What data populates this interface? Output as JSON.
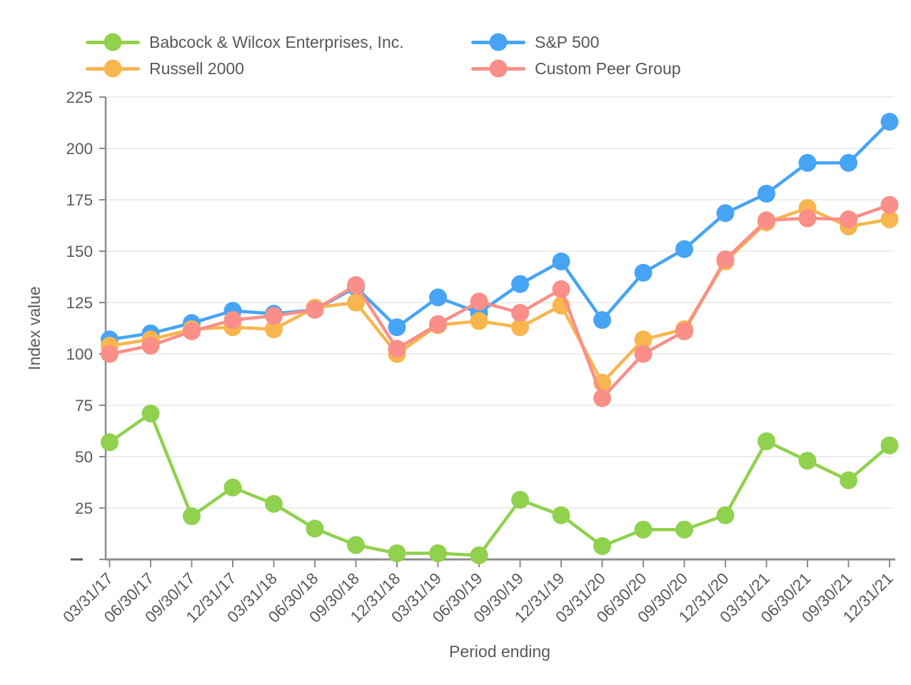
{
  "chart_data": {
    "type": "line",
    "title": "",
    "xlabel": "Period ending",
    "ylabel": "Index value",
    "ylim": [
      0,
      225
    ],
    "ytick_step": 25,
    "grid": true,
    "legend_position": "top",
    "categories": [
      "03/31/17",
      "06/30/17",
      "09/30/17",
      "12/31/17",
      "03/31/18",
      "06/30/18",
      "09/30/18",
      "12/31/18",
      "03/31/19",
      "06/30/19",
      "09/30/19",
      "12/31/19",
      "03/31/20",
      "06/30/20",
      "09/30/20",
      "12/31/20",
      "03/31/21",
      "06/30/21",
      "09/30/21",
      "12/31/21"
    ],
    "series": [
      {
        "name": "Babcock & Wilcox Enterprises, Inc.",
        "color": "#90d14d",
        "values": [
          57,
          71,
          21,
          35,
          27,
          15,
          7,
          3,
          3,
          2,
          29,
          21.5,
          6.5,
          14.5,
          14.5,
          21.5,
          57.5,
          48,
          38.5,
          55.5
        ]
      },
      {
        "name": "S&P 500",
        "color": "#47a4f5",
        "values": [
          107,
          110,
          115,
          121,
          119.5,
          121.5,
          132.5,
          113,
          127.5,
          120,
          134,
          145,
          116.5,
          139.5,
          151,
          168.5,
          178,
          193,
          193,
          213
        ]
      },
      {
        "name": "Russell 2000",
        "color": "#f7b64e",
        "values": [
          104,
          107,
          112,
          113,
          112,
          122.5,
          125,
          100,
          114,
          116,
          113,
          123.5,
          86,
          107,
          112,
          145,
          164,
          171,
          162,
          165.5
        ]
      },
      {
        "name": "Custom Peer Group",
        "color": "#f98f88",
        "values": [
          100,
          104,
          111,
          116.5,
          118.5,
          121.5,
          133.5,
          102.5,
          114.5,
          125.5,
          120,
          131.5,
          78.5,
          100,
          111,
          146,
          165,
          166,
          165.5,
          172.5
        ]
      }
    ],
    "colors": {
      "tick_label": "#58595b",
      "axis_line": "#8c8c8c",
      "grid_line": "#ededed"
    }
  }
}
